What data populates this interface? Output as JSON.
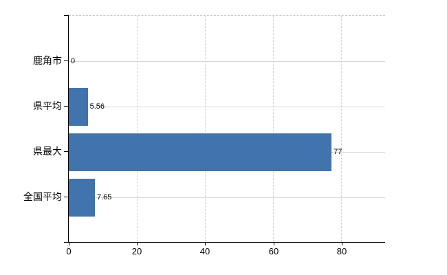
{
  "chart_data": {
    "type": "bar",
    "orientation": "horizontal",
    "title": "",
    "xlabel": "",
    "ylabel": "",
    "categories": [
      "鹿角市",
      "県平均",
      "県最大",
      "全国平均"
    ],
    "values": [
      0,
      5.56,
      77,
      7.65
    ],
    "value_labels": [
      "0",
      "5.56",
      "77",
      "7.65"
    ],
    "x_ticks": [
      0,
      20,
      40,
      60,
      80
    ],
    "x_tick_labels": [
      "0",
      "20",
      "40",
      "60",
      "80"
    ],
    "xlim": [
      0,
      92.7
    ],
    "grid": true,
    "legend": "none",
    "bar_color": "#4173ac",
    "axis_color": "#000000",
    "vgrid_color": "#d6cfd6",
    "hgrid_color": "#d4dcd4",
    "top_border_color": "#c9c9c9",
    "text_color": "#000000"
  }
}
